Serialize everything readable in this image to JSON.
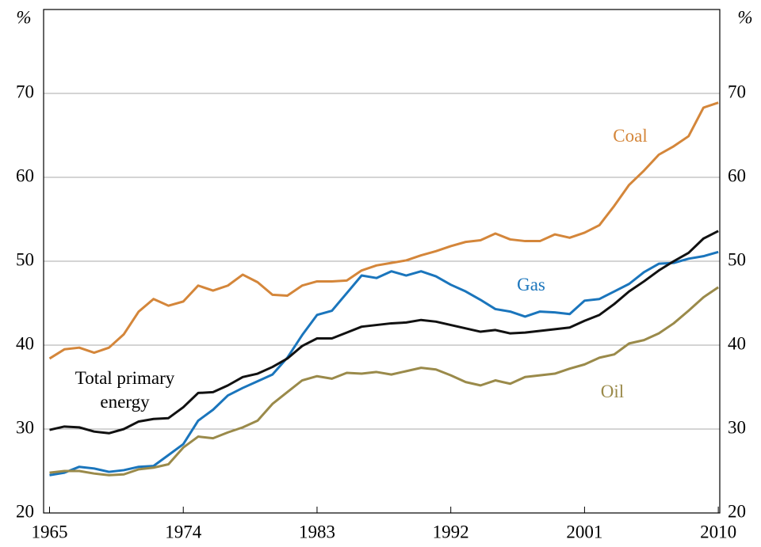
{
  "chart_data": {
    "type": "line",
    "y_unit_label": "%",
    "x": [
      1965,
      1966,
      1967,
      1968,
      1969,
      1970,
      1971,
      1972,
      1973,
      1974,
      1975,
      1976,
      1977,
      1978,
      1979,
      1980,
      1981,
      1982,
      1983,
      1984,
      1985,
      1986,
      1987,
      1988,
      1989,
      1990,
      1991,
      1992,
      1993,
      1994,
      1995,
      1996,
      1997,
      1998,
      1999,
      2000,
      2001,
      2002,
      2003,
      2004,
      2005,
      2006,
      2007,
      2008,
      2009,
      2010
    ],
    "series": [
      {
        "name": "Coal",
        "color": "#d4863a",
        "values": [
          38.4,
          39.5,
          39.7,
          39.1,
          39.7,
          41.3,
          44.0,
          45.5,
          44.7,
          45.2,
          47.1,
          46.5,
          47.1,
          48.4,
          47.5,
          46.0,
          45.9,
          47.1,
          47.6,
          47.6,
          47.7,
          48.9,
          49.5,
          49.8,
          50.1,
          50.7,
          51.2,
          51.8,
          52.3,
          52.5,
          53.3,
          52.6,
          52.4,
          52.4,
          53.2,
          52.8,
          53.4,
          54.3,
          56.6,
          59.1,
          60.8,
          62.7,
          63.7,
          64.9,
          68.3,
          68.9
        ]
      },
      {
        "name": "Gas",
        "color": "#1a75bc",
        "values": [
          24.5,
          24.8,
          25.5,
          25.3,
          24.9,
          25.1,
          25.5,
          25.6,
          26.9,
          28.2,
          31.0,
          32.3,
          34.0,
          34.9,
          35.7,
          36.5,
          38.5,
          41.2,
          43.6,
          44.1,
          46.2,
          48.3,
          48.0,
          48.8,
          48.3,
          48.8,
          48.2,
          47.2,
          46.4,
          45.4,
          44.3,
          44.0,
          43.4,
          44.0,
          43.9,
          43.7,
          45.3,
          45.5,
          46.4,
          47.3,
          48.7,
          49.7,
          49.8,
          50.3,
          50.6,
          51.1
        ]
      },
      {
        "name": "Total primary energy",
        "color": "#111111",
        "values": [
          29.9,
          30.3,
          30.2,
          29.7,
          29.5,
          30.0,
          30.9,
          31.2,
          31.3,
          32.6,
          34.3,
          34.4,
          35.2,
          36.2,
          36.6,
          37.4,
          38.4,
          39.9,
          40.8,
          40.8,
          41.5,
          42.2,
          42.4,
          42.6,
          42.7,
          43.0,
          42.8,
          42.4,
          42.0,
          41.6,
          41.8,
          41.4,
          41.5,
          41.7,
          41.9,
          42.1,
          42.9,
          43.6,
          44.9,
          46.4,
          47.6,
          48.9,
          50.0,
          51.0,
          52.7,
          53.6
        ]
      },
      {
        "name": "Oil",
        "color": "#9a8a4a",
        "values": [
          24.8,
          25.0,
          25.0,
          24.7,
          24.5,
          24.6,
          25.2,
          25.4,
          25.8,
          27.8,
          29.1,
          28.9,
          29.6,
          30.2,
          31.0,
          33.0,
          34.4,
          35.8,
          36.3,
          36.0,
          36.7,
          36.6,
          36.8,
          36.5,
          36.9,
          37.3,
          37.1,
          36.4,
          35.6,
          35.2,
          35.8,
          35.4,
          36.2,
          36.4,
          36.6,
          37.2,
          37.7,
          38.5,
          38.9,
          40.2,
          40.6,
          41.4,
          42.6,
          44.1,
          45.7,
          46.9
        ]
      }
    ],
    "xlim": [
      1964.6,
      2010.1
    ],
    "xticks": [
      1965,
      1974,
      1983,
      1992,
      2001,
      2010
    ],
    "ylim": [
      20,
      80
    ],
    "yticks": [
      20,
      30,
      40,
      50,
      60,
      70
    ],
    "grid": true
  }
}
